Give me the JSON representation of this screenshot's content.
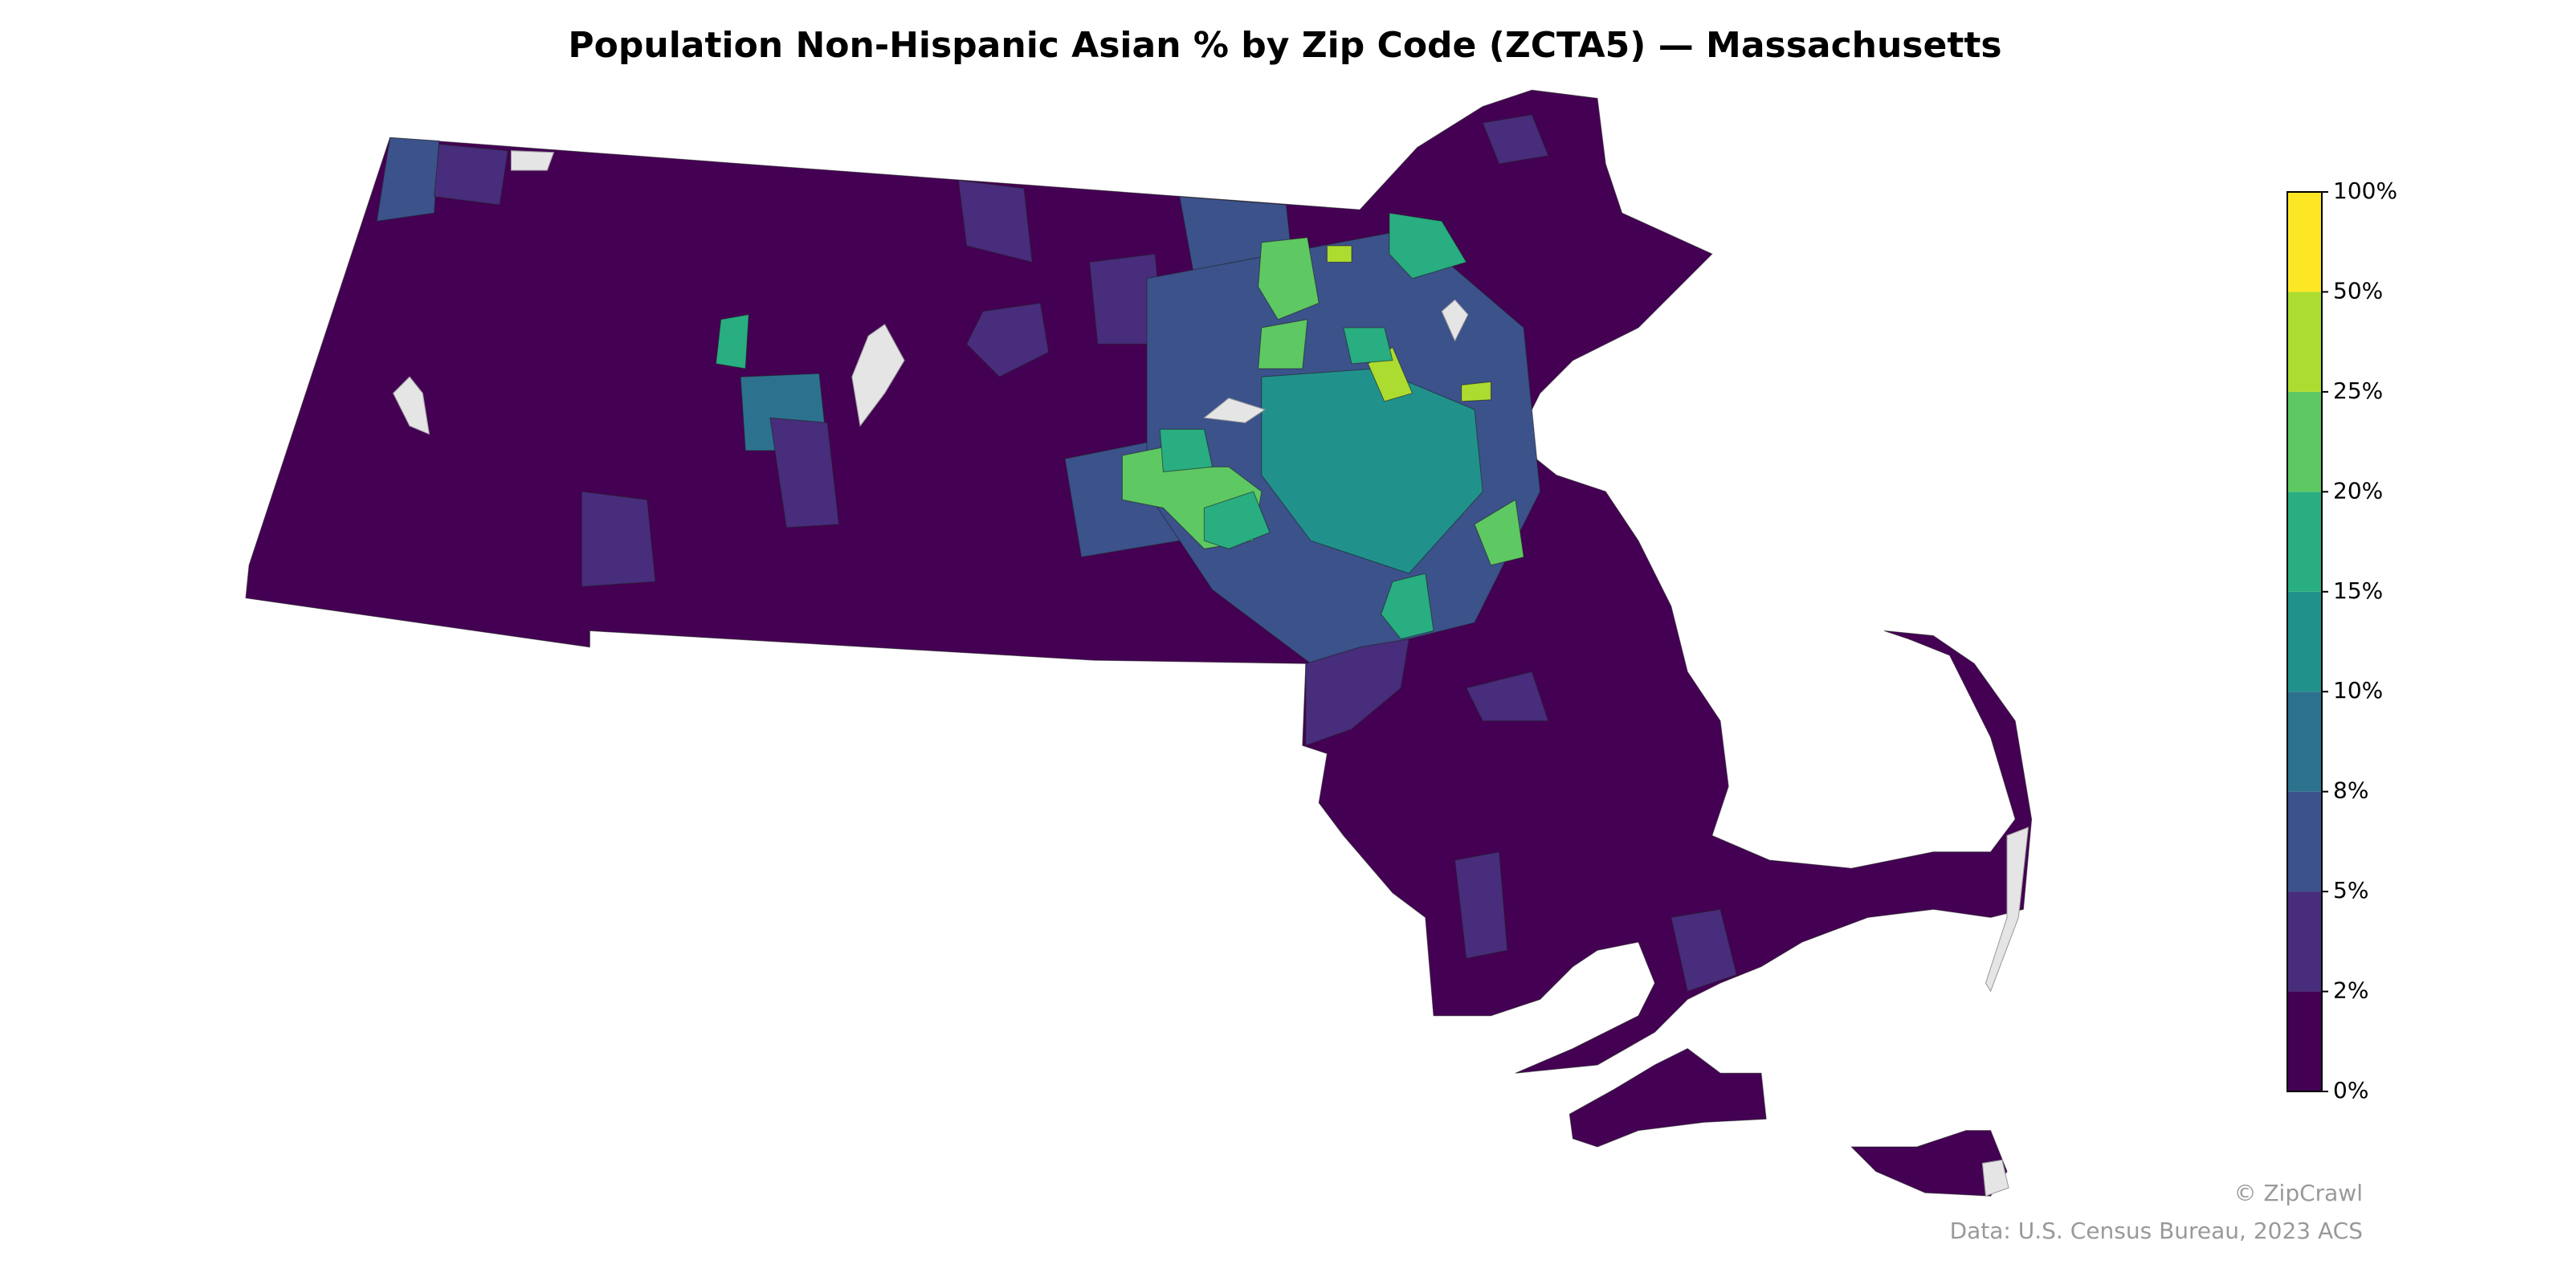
{
  "chart_data": {
    "type": "choropleth",
    "title": "Population Non-Hispanic Asian % by Zip Code (ZCTA5) — Massachusetts",
    "colorbar": {
      "ticks": [
        {
          "value": 0,
          "label": "0%"
        },
        {
          "value": 2,
          "label": "2%"
        },
        {
          "value": 5,
          "label": "5%"
        },
        {
          "value": 8,
          "label": "8%"
        },
        {
          "value": 10,
          "label": "10%"
        },
        {
          "value": 15,
          "label": "15%"
        },
        {
          "value": 20,
          "label": "20%"
        },
        {
          "value": 25,
          "label": "25%"
        },
        {
          "value": 50,
          "label": "50%"
        },
        {
          "value": 100,
          "label": "100%"
        }
      ],
      "colors": [
        "#440154",
        "#472d7b",
        "#3b528b",
        "#2c728e",
        "#21918c",
        "#28ae80",
        "#5ec962",
        "#addc30",
        "#fde725"
      ]
    },
    "credits": [
      "© ZipCrawl",
      "Data: U.S. Census Bureau, 2023 ACS"
    ]
  }
}
